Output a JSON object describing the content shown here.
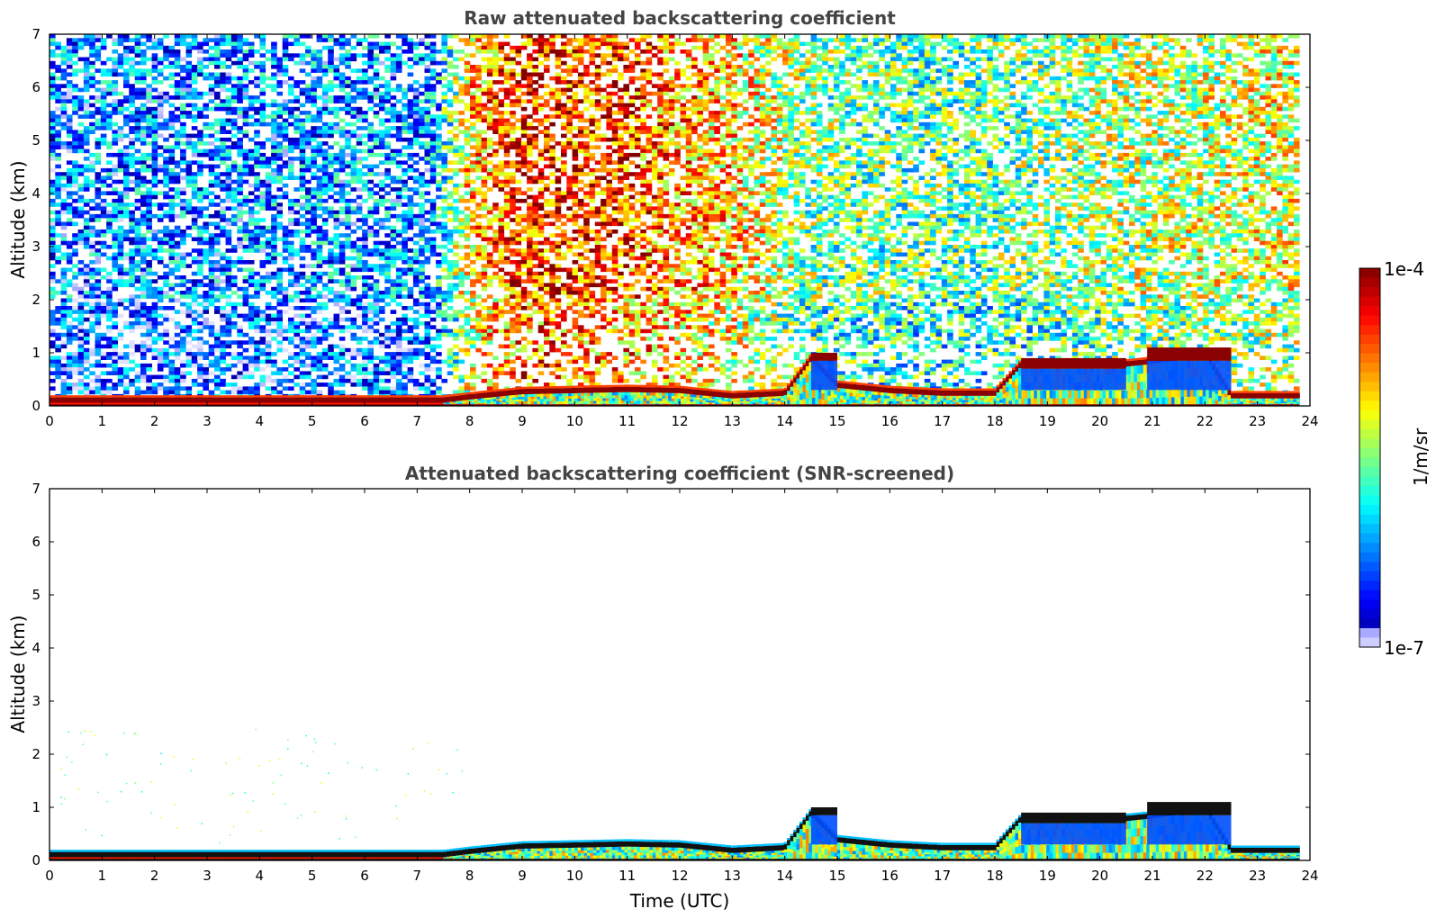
{
  "chart_data": [
    {
      "type": "heatmap",
      "title": "Raw attenuated backscattering coefficient",
      "xlabel": "",
      "ylabel": "Altitude (km)",
      "xlim": [
        0,
        24
      ],
      "ylim": [
        0,
        7
      ],
      "xticks": [
        "0",
        "1",
        "2",
        "3",
        "4",
        "5",
        "6",
        "7",
        "8",
        "9",
        "10",
        "11",
        "12",
        "13",
        "14",
        "15",
        "16",
        "17",
        "18",
        "19",
        "20",
        "21",
        "22",
        "23",
        "24"
      ],
      "yticks": [
        "0",
        "1",
        "2",
        "3",
        "4",
        "5",
        "6",
        "7"
      ],
      "background_noise_log10": [
        [
          0,
          -6.3
        ],
        [
          7.3,
          -6.2
        ],
        [
          8,
          -5.0
        ],
        [
          9,
          -4.5
        ],
        [
          11,
          -4.6
        ],
        [
          13,
          -5.0
        ],
        [
          14.5,
          -5.5
        ],
        [
          16,
          -5.6
        ],
        [
          18,
          -5.6
        ],
        [
          20,
          -5.4
        ],
        [
          23.8,
          -5.2
        ]
      ],
      "boundary_layer_top_km": [
        [
          0,
          0.12
        ],
        [
          7.5,
          0.12
        ],
        [
          8,
          0.18
        ],
        [
          9,
          0.28
        ],
        [
          10,
          0.3
        ],
        [
          11,
          0.32
        ],
        [
          12,
          0.3
        ],
        [
          13,
          0.2
        ],
        [
          14,
          0.25
        ],
        [
          14.5,
          0.9
        ],
        [
          15,
          0.4
        ],
        [
          16,
          0.3
        ],
        [
          17,
          0.25
        ],
        [
          18,
          0.25
        ],
        [
          18.5,
          0.8
        ],
        [
          20.5,
          0.8
        ],
        [
          21,
          0.85
        ],
        [
          22,
          1.0
        ],
        [
          22.5,
          0.2
        ],
        [
          23.8,
          0.2
        ]
      ],
      "cloud_layers": [
        {
          "t_start": 14.5,
          "t_end": 15.0,
          "base_km": 0.85,
          "top_km": 1.0
        },
        {
          "t_start": 18.5,
          "t_end": 20.5,
          "base_km": 0.7,
          "top_km": 0.9
        },
        {
          "t_start": 20.9,
          "t_end": 22.5,
          "base_km": 0.85,
          "top_km": 1.1
        }
      ]
    },
    {
      "type": "heatmap",
      "title": "Attenuated backscattering coefficient (SNR-screened)",
      "xlabel": "Time (UTC)",
      "ylabel": "Altitude (km)",
      "xlim": [
        0,
        24
      ],
      "ylim": [
        0,
        7
      ],
      "xticks": [
        "0",
        "1",
        "2",
        "3",
        "4",
        "5",
        "6",
        "7",
        "8",
        "9",
        "10",
        "11",
        "12",
        "13",
        "14",
        "15",
        "16",
        "17",
        "18",
        "19",
        "20",
        "21",
        "22",
        "23",
        "24"
      ],
      "yticks": [
        "0",
        "1",
        "2",
        "3",
        "4",
        "5",
        "6",
        "7"
      ],
      "boundary_layer_top_km": [
        [
          0,
          0.12
        ],
        [
          7.5,
          0.12
        ],
        [
          8,
          0.18
        ],
        [
          9,
          0.28
        ],
        [
          10,
          0.3
        ],
        [
          11,
          0.32
        ],
        [
          12,
          0.3
        ],
        [
          13,
          0.2
        ],
        [
          14,
          0.25
        ],
        [
          14.5,
          0.9
        ],
        [
          15,
          0.4
        ],
        [
          16,
          0.3
        ],
        [
          17,
          0.25
        ],
        [
          18,
          0.25
        ],
        [
          18.5,
          0.8
        ],
        [
          20.5,
          0.8
        ],
        [
          21,
          0.85
        ],
        [
          22,
          1.0
        ],
        [
          22.5,
          0.2
        ],
        [
          23.8,
          0.2
        ]
      ],
      "cloud_layers": [
        {
          "t_start": 14.5,
          "t_end": 15.0,
          "base_km": 0.85,
          "top_km": 1.0
        },
        {
          "t_start": 18.5,
          "t_end": 20.5,
          "base_km": 0.7,
          "top_km": 0.9
        },
        {
          "t_start": 20.9,
          "t_end": 22.5,
          "base_km": 0.85,
          "top_km": 1.1
        }
      ]
    }
  ],
  "colorbar": {
    "max_label": "1e-4",
    "min_label": "1e-7",
    "unit": "1/m/sr",
    "log10_range": [
      -7,
      -4
    ]
  },
  "colors": {
    "title": "#444444",
    "low": "#e6e6ff",
    "high": "#800000"
  }
}
